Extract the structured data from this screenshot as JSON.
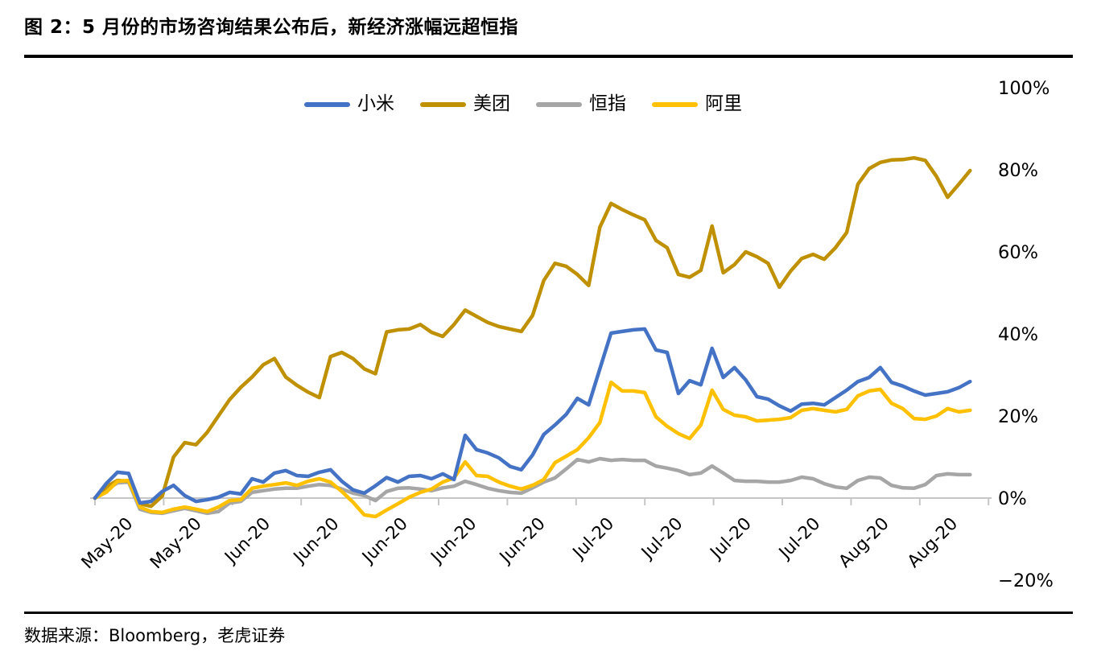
{
  "header": {
    "title": "图 2：5 月份的市场咨询结果公布后，新经济涨幅远超恒指"
  },
  "footer": {
    "source": "数据来源：Bloomberg，老虎证券"
  },
  "chart_data": {
    "type": "line",
    "title": "图 2：5 月份的市场咨询结果公布后，新经济涨幅远超恒指",
    "xlabel": "",
    "ylabel": "",
    "ylim": [
      -20,
      100
    ],
    "y_ticks": [
      100,
      80,
      60,
      40,
      20,
      0,
      -20
    ],
    "y_tick_suffix": "%",
    "grid": false,
    "legend_position": "top-center",
    "axis_color": "#C6C6C6",
    "x_tick_labels": [
      "May-20",
      "May-20",
      "Jun-20",
      "Jun-20",
      "Jun-20",
      "Jun-20",
      "Jun-20",
      "Jul-20",
      "Jul-20",
      "Jul-20",
      "Jul-20",
      "Aug-20",
      "Aug-20"
    ],
    "series": [
      {
        "key": "xiaomi",
        "name": "小米",
        "color": "#4472C4",
        "values": [
          0,
          3.5,
          6.3,
          6,
          -1.2,
          -0.8,
          1.6,
          3.1,
          0.6,
          -0.8,
          -0.4,
          0.2,
          1.4,
          1,
          4.7,
          3.9,
          6.1,
          6.7,
          5.5,
          5.3,
          6.3,
          6.9,
          4.1,
          2,
          1.2,
          3,
          5,
          3.9,
          5.3,
          5.5,
          4.7,
          5.9,
          4.5,
          15.3,
          11.8,
          11,
          9.8,
          7.7,
          6.9,
          10.5,
          15.5,
          17.8,
          20.4,
          24.3,
          22.7,
          31.5,
          40.2,
          40.6,
          41,
          41.2,
          36.1,
          35.5,
          25.5,
          28.6,
          27.6,
          36.5,
          29.4,
          31.8,
          28.8,
          24.7,
          24.1,
          22.5,
          21.2,
          22.9,
          23.1,
          22.7,
          24.5,
          26.3,
          28.4,
          29.4,
          31.8,
          28.2,
          27.3,
          26.1,
          25.1,
          25.5,
          25.9,
          26.9,
          28.4
        ]
      },
      {
        "key": "meituan",
        "name": "美团",
        "color": "#BF9000",
        "values": [
          0,
          2.7,
          4.3,
          4.1,
          -1.4,
          -2,
          0.5,
          10,
          13.5,
          13,
          16,
          20,
          24,
          27,
          29.5,
          32.5,
          34,
          29.5,
          27.5,
          25.8,
          24.5,
          34.5,
          35.5,
          34,
          31.5,
          30.3,
          40.5,
          41,
          41.2,
          42.3,
          40.4,
          39.4,
          42.3,
          45.8,
          44.3,
          42.8,
          41.8,
          41.2,
          40.6,
          44.5,
          53,
          57.2,
          56.5,
          54.5,
          51.8,
          66,
          71.8,
          70.3,
          69,
          67.8,
          62.8,
          61,
          54.5,
          53.8,
          55.5,
          66.3,
          54.9,
          56.9,
          60,
          58.8,
          57.2,
          51.4,
          55.3,
          58.4,
          59.4,
          58.2,
          61,
          64.7,
          76.5,
          80.3,
          81.8,
          82.4,
          82.5,
          82.9,
          82.3,
          78.4,
          73.3,
          76.5,
          79.8
        ]
      },
      {
        "key": "hsi",
        "name": "恒指",
        "color": "#A6A6A6",
        "values": [
          0,
          2,
          3.7,
          3.9,
          -2.7,
          -3.5,
          -3.7,
          -3.1,
          -2.5,
          -3.1,
          -3.7,
          -3.3,
          -1.2,
          -0.8,
          1.4,
          1.8,
          2.2,
          2.4,
          2.4,
          2.9,
          3.3,
          3.1,
          2.2,
          1.2,
          0.6,
          -0.6,
          1.6,
          2.4,
          2.5,
          2.2,
          1.8,
          2.5,
          2.9,
          4.1,
          3.3,
          2.4,
          1.8,
          1.4,
          1.2,
          2.5,
          3.9,
          4.9,
          7.1,
          9.4,
          8.8,
          9.6,
          9.2,
          9.4,
          9.2,
          9.2,
          7.8,
          7.3,
          6.7,
          5.7,
          6.1,
          7.8,
          6.1,
          4.3,
          4.1,
          4.1,
          3.9,
          3.9,
          4.3,
          5.1,
          4.7,
          3.5,
          2.7,
          2.4,
          4.3,
          5.1,
          4.9,
          3.1,
          2.5,
          2.4,
          3.3,
          5.5,
          5.9,
          5.7,
          5.7
        ]
      },
      {
        "key": "alibaba",
        "name": "阿里",
        "color": "#FFC000",
        "values": [
          0,
          1.4,
          4.1,
          4.3,
          -2.2,
          -3.3,
          -3.5,
          -2.7,
          -2.2,
          -2.7,
          -3.3,
          -2.2,
          -0.6,
          -0.4,
          2.4,
          2.9,
          3.3,
          3.7,
          3.1,
          4.1,
          4.7,
          3.9,
          1.6,
          -1,
          -4.1,
          -4.5,
          -2.9,
          -1.4,
          0.2,
          1.4,
          2.2,
          3.9,
          4.9,
          8.8,
          5.5,
          5.3,
          3.9,
          2.9,
          2.2,
          3.1,
          4.5,
          8.6,
          10.2,
          11.8,
          14.7,
          18.4,
          28.2,
          26.1,
          26.1,
          25.7,
          19.8,
          17.5,
          15.7,
          14.5,
          17.8,
          26.3,
          21.6,
          20.2,
          19.8,
          18.8,
          19,
          19.2,
          19.6,
          21.4,
          21.8,
          21.4,
          21,
          21.6,
          24.9,
          26.1,
          26.5,
          23.1,
          21.8,
          19.4,
          19.2,
          20,
          21.8,
          21,
          21.4
        ]
      }
    ],
    "draw_order": [
      "hsi",
      "meituan",
      "alibaba",
      "xiaomi"
    ]
  }
}
